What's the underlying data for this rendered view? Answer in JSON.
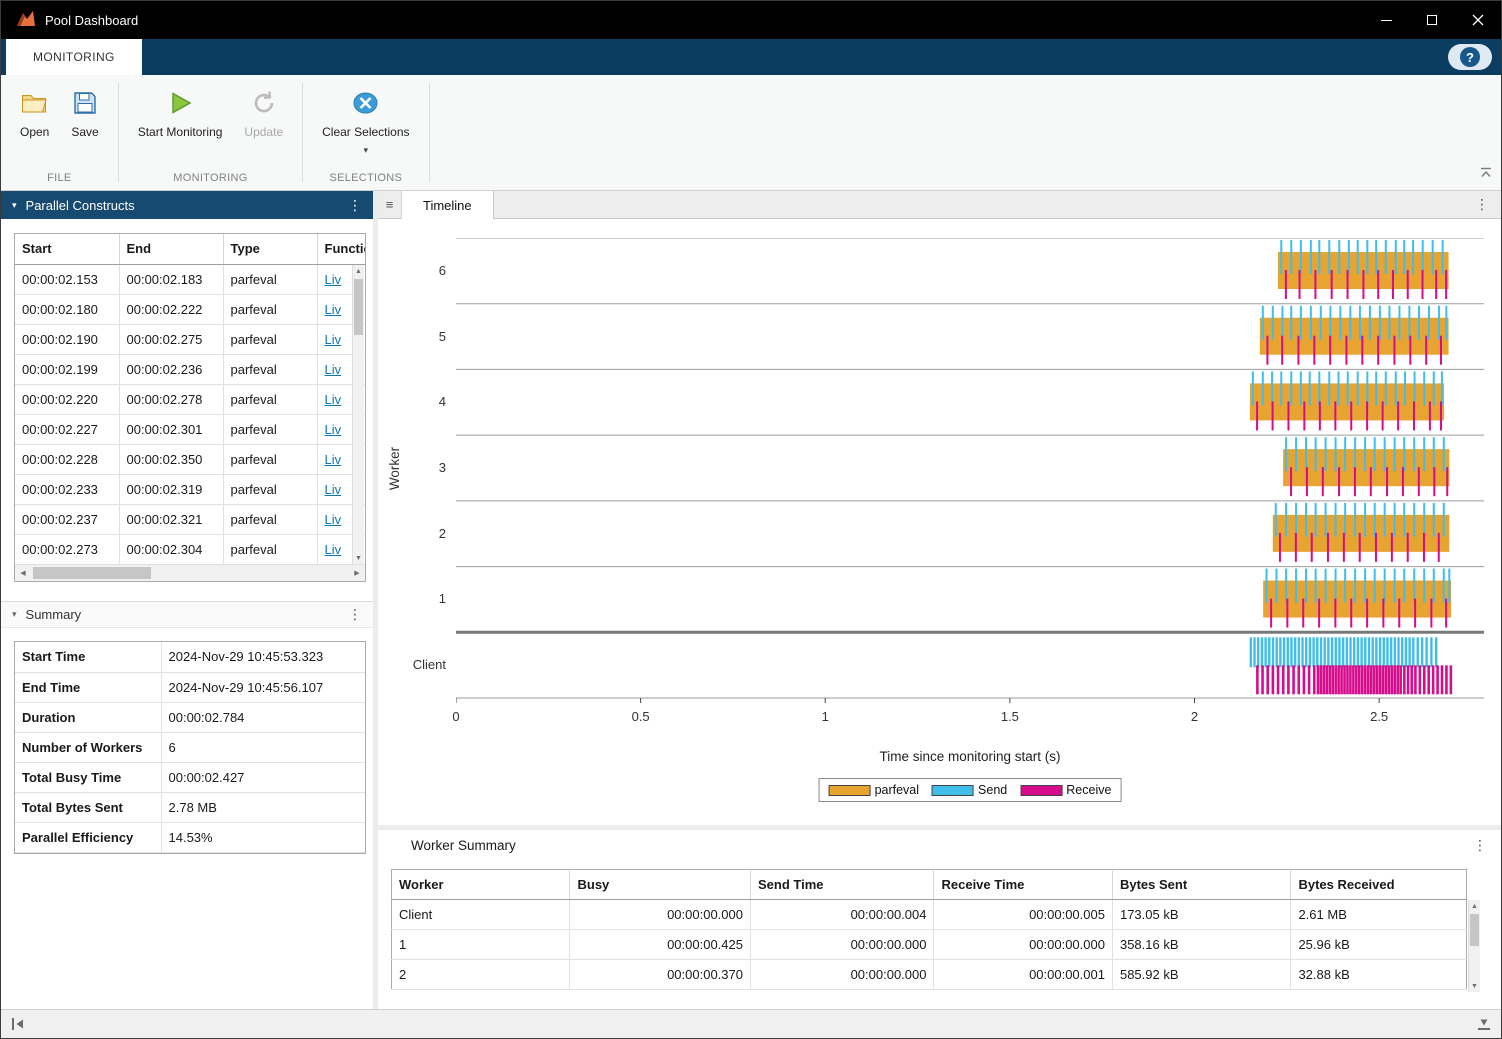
{
  "window": {
    "title": "Pool Dashboard"
  },
  "icons": {
    "help": "?",
    "kebab": "⋮",
    "collapse_arrow": "▾",
    "dropdown_arrow": "▾",
    "doc_list": "≡",
    "scroll_up": "▲",
    "scroll_down": "▼",
    "scroll_left": "◀",
    "scroll_right": "▶"
  },
  "ribbon": {
    "tab": "MONITORING",
    "file_group": {
      "label": "FILE",
      "open": "Open",
      "save": "Save"
    },
    "monitoring_group": {
      "label": "MONITORING",
      "start": "Start Monitoring",
      "update": "Update"
    },
    "selections_group": {
      "label": "SELECTIONS",
      "clear": "Clear Selections"
    }
  },
  "parallel_constructs": {
    "title": "Parallel Constructs",
    "columns": [
      "Start",
      "End",
      "Type",
      "Function"
    ],
    "rows": [
      [
        "00:00:02.153",
        "00:00:02.183",
        "parfeval",
        "Liv"
      ],
      [
        "00:00:02.180",
        "00:00:02.222",
        "parfeval",
        "Liv"
      ],
      [
        "00:00:02.190",
        "00:00:02.275",
        "parfeval",
        "Liv"
      ],
      [
        "00:00:02.199",
        "00:00:02.236",
        "parfeval",
        "Liv"
      ],
      [
        "00:00:02.220",
        "00:00:02.278",
        "parfeval",
        "Liv"
      ],
      [
        "00:00:02.227",
        "00:00:02.301",
        "parfeval",
        "Liv"
      ],
      [
        "00:00:02.228",
        "00:00:02.350",
        "parfeval",
        "Liv"
      ],
      [
        "00:00:02.233",
        "00:00:02.319",
        "parfeval",
        "Liv"
      ],
      [
        "00:00:02.237",
        "00:00:02.321",
        "parfeval",
        "Liv"
      ],
      [
        "00:00:02.273",
        "00:00:02.304",
        "parfeval",
        "Liv"
      ]
    ]
  },
  "summary": {
    "title": "Summary",
    "rows": [
      {
        "label": "Start Time",
        "value": "2024-Nov-29 10:45:53.323"
      },
      {
        "label": "End Time",
        "value": "2024-Nov-29 10:45:56.107"
      },
      {
        "label": "Duration",
        "value": "00:00:02.784"
      },
      {
        "label": "Number of Workers",
        "value": "6"
      },
      {
        "label": "Total Busy Time",
        "value": "00:00:02.427"
      },
      {
        "label": "Total Bytes Sent",
        "value": "2.78 MB"
      },
      {
        "label": "Parallel Efficiency",
        "value": "14.53%"
      }
    ]
  },
  "timeline": {
    "tab": "Timeline",
    "chart_data": {
      "type": "timeline",
      "xlabel": "Time since monitoring start (s)",
      "ylabel": "Worker",
      "xlim": [
        0,
        2.784
      ],
      "xticks": [
        0,
        0.5,
        1,
        1.5,
        2,
        2.5
      ],
      "xtick_labels": [
        "0",
        "0.5",
        "1",
        "1.5",
        "2",
        "2.5"
      ],
      "lanes": [
        "6",
        "5",
        "4",
        "3",
        "2",
        "1",
        "Client"
      ],
      "colors": {
        "parfeval": "#E8A430",
        "send": "#3FBEEA",
        "receive": "#D60C8C"
      },
      "legend": [
        {
          "label": "parfeval",
          "color_key": "parfeval"
        },
        {
          "label": "Send",
          "color_key": "send"
        },
        {
          "label": "Receive",
          "color_key": "receive"
        }
      ],
      "series": [
        {
          "lane": "6",
          "bar": [
            2.226,
            2.688
          ],
          "send": [
            2.235,
            2.262,
            2.288,
            2.315,
            2.338,
            2.365,
            2.392,
            2.418,
            2.442,
            2.468,
            2.492,
            2.518,
            2.545,
            2.568,
            2.592,
            2.618,
            2.645,
            2.672
          ],
          "receive": [
            2.248,
            2.285,
            2.328,
            2.372,
            2.415,
            2.458,
            2.498,
            2.538,
            2.578,
            2.618,
            2.655,
            2.682
          ]
        },
        {
          "lane": "5",
          "bar": [
            2.177,
            2.688
          ],
          "send": [
            2.185,
            2.212,
            2.238,
            2.262,
            2.288,
            2.315,
            2.342,
            2.368,
            2.395,
            2.422,
            2.448,
            2.475,
            2.502,
            2.528,
            2.555,
            2.582,
            2.608,
            2.635,
            2.662,
            2.682
          ],
          "receive": [
            2.198,
            2.238,
            2.282,
            2.325,
            2.368,
            2.412,
            2.455,
            2.498,
            2.542,
            2.585,
            2.628,
            2.668
          ]
        },
        {
          "lane": "4",
          "bar": [
            2.15,
            2.676
          ],
          "send": [
            2.158,
            2.185,
            2.21,
            2.235,
            2.262,
            2.288,
            2.312,
            2.338,
            2.365,
            2.39,
            2.415,
            2.442,
            2.468,
            2.492,
            2.518,
            2.545,
            2.57,
            2.596,
            2.622,
            2.648,
            2.67
          ],
          "receive": [
            2.17,
            2.212,
            2.255,
            2.298,
            2.34,
            2.382,
            2.425,
            2.468,
            2.51,
            2.552,
            2.595,
            2.638,
            2.668
          ]
        },
        {
          "lane": "3",
          "bar": [
            2.24,
            2.69
          ],
          "send": [
            2.248,
            2.275,
            2.302,
            2.328,
            2.355,
            2.382,
            2.408,
            2.435,
            2.462,
            2.488,
            2.515,
            2.542,
            2.568,
            2.595,
            2.622,
            2.648,
            2.675
          ],
          "receive": [
            2.262,
            2.305,
            2.348,
            2.392,
            2.435,
            2.478,
            2.522,
            2.565,
            2.608,
            2.65,
            2.685
          ]
        },
        {
          "lane": "2",
          "bar": [
            2.212,
            2.69
          ],
          "send": [
            2.22,
            2.248,
            2.275,
            2.302,
            2.328,
            2.355,
            2.382,
            2.408,
            2.435,
            2.462,
            2.488,
            2.515,
            2.542,
            2.568,
            2.595,
            2.622,
            2.648,
            2.675
          ],
          "receive": [
            2.232,
            2.275,
            2.318,
            2.362,
            2.405,
            2.448,
            2.492,
            2.535,
            2.578,
            2.622,
            2.662
          ]
        },
        {
          "lane": "1",
          "bar": [
            2.186,
            2.695
          ],
          "send": [
            2.195,
            2.222,
            2.248,
            2.275,
            2.302,
            2.328,
            2.355,
            2.382,
            2.408,
            2.435,
            2.462,
            2.488,
            2.515,
            2.542,
            2.568,
            2.595,
            2.622,
            2.648,
            2.675,
            2.69
          ],
          "receive": [
            2.208,
            2.252,
            2.295,
            2.338,
            2.382,
            2.425,
            2.468,
            2.512,
            2.555,
            2.598,
            2.642,
            2.682
          ]
        },
        {
          "lane": "Client",
          "bar": null,
          "send": [
            2.152,
            2.162,
            2.172,
            2.182,
            2.192,
            2.202,
            2.212,
            2.222,
            2.232,
            2.242,
            2.252,
            2.262,
            2.272,
            2.282,
            2.292,
            2.302,
            2.312,
            2.322,
            2.332,
            2.342,
            2.352,
            2.362,
            2.372,
            2.382,
            2.392,
            2.402,
            2.412,
            2.422,
            2.432,
            2.442,
            2.452,
            2.462,
            2.472,
            2.482,
            2.492,
            2.502,
            2.512,
            2.522,
            2.532,
            2.542,
            2.552,
            2.562,
            2.572,
            2.582,
            2.592,
            2.604,
            2.616,
            2.628,
            2.641,
            2.654
          ],
          "receive": [
            2.17,
            2.184,
            2.198,
            2.212,
            2.226,
            2.24,
            2.254,
            2.268,
            2.282,
            2.296,
            2.31,
            2.324,
            2.334,
            2.342,
            2.35,
            2.358,
            2.366,
            2.374,
            2.382,
            2.39,
            2.398,
            2.406,
            2.414,
            2.422,
            2.43,
            2.438,
            2.446,
            2.454,
            2.462,
            2.47,
            2.478,
            2.486,
            2.494,
            2.502,
            2.51,
            2.518,
            2.526,
            2.534,
            2.542,
            2.55,
            2.558,
            2.568,
            2.578,
            2.588,
            2.598,
            2.61,
            2.622,
            2.634,
            2.646,
            2.658,
            2.67,
            2.682,
            2.694
          ]
        }
      ]
    }
  },
  "worker_summary": {
    "title": "Worker Summary",
    "columns": [
      "Worker",
      "Busy",
      "Send Time",
      "Receive Time",
      "Bytes Sent",
      "Bytes Received"
    ],
    "rows": [
      [
        "Client",
        "00:00:00.000",
        "00:00:00.004",
        "00:00:00.005",
        "173.05 kB",
        "2.61 MB"
      ],
      [
        "1",
        "00:00:00.425",
        "00:00:00.000",
        "00:00:00.000",
        "358.16 kB",
        "25.96 kB"
      ],
      [
        "2",
        "00:00:00.370",
        "00:00:00.000",
        "00:00:00.001",
        "585.92 kB",
        "32.88 kB"
      ]
    ]
  }
}
